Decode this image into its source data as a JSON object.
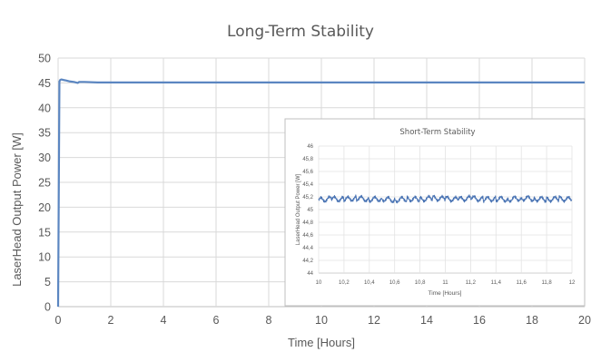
{
  "chart_data": [
    {
      "type": "line",
      "title": "Long-Term Stability",
      "xlabel": "Time [Hours]",
      "ylabel": "LaserHead Output Power [W]",
      "xlim": [
        0,
        20
      ],
      "ylim": [
        0,
        50
      ],
      "x_ticks": [
        0,
        2,
        4,
        6,
        8,
        10,
        12,
        14,
        16,
        18,
        20
      ],
      "y_ticks": [
        0,
        5,
        10,
        15,
        20,
        25,
        30,
        35,
        40,
        45,
        50
      ],
      "grid": true,
      "color": "#5b86c1",
      "series": [
        {
          "x": [
            0,
            0.05,
            0.08,
            0.12,
            0.2,
            0.3,
            0.45,
            0.6,
            0.75,
            0.8,
            1,
            1.5,
            2,
            3,
            4,
            5,
            6,
            7,
            8,
            9,
            10,
            11,
            12,
            13,
            14,
            15,
            16,
            17,
            18,
            19,
            20
          ],
          "y": [
            0,
            45.3,
            45.6,
            45.7,
            45.6,
            45.5,
            45.3,
            45.2,
            45.0,
            45.2,
            45.2,
            45.1,
            45.1,
            45.1,
            45.1,
            45.1,
            45.1,
            45.1,
            45.1,
            45.1,
            45.1,
            45.1,
            45.1,
            45.1,
            45.1,
            45.1,
            45.1,
            45.1,
            45.1,
            45.1,
            45.1
          ]
        }
      ]
    },
    {
      "type": "line",
      "title": "Short-Term Stability",
      "xlabel": "Time [Hours]",
      "ylabel": "LaserHead Output Power [W]",
      "xlim": [
        10,
        12
      ],
      "ylim": [
        44,
        46
      ],
      "x_ticks": [
        "10",
        "10,2",
        "10,4",
        "10,6",
        "10,8",
        "11",
        "11,2",
        "11,4",
        "11,6",
        "11,8",
        "12"
      ],
      "y_ticks": [
        "44",
        "44,2",
        "44,4",
        "44,6",
        "44,8",
        "45",
        "45,2",
        "45,4",
        "45,6",
        "45,8",
        "46"
      ],
      "grid": true,
      "color": "#4a74b4",
      "series": [
        {
          "x": [
            10,
            10.1,
            10.2,
            10.3,
            10.4,
            10.5,
            10.6,
            10.7,
            10.8,
            10.9,
            11,
            11.1,
            11.2,
            11.3,
            11.4,
            11.5,
            11.6,
            11.7,
            11.8,
            11.9,
            12
          ],
          "y": [
            45.15,
            45.17,
            45.16,
            45.18,
            45.16,
            45.17,
            45.15,
            45.17,
            45.16,
            45.18,
            45.17,
            45.16,
            45.18,
            45.16,
            45.17,
            45.16,
            45.18,
            45.17,
            45.16,
            45.17,
            45.16
          ]
        }
      ]
    }
  ]
}
